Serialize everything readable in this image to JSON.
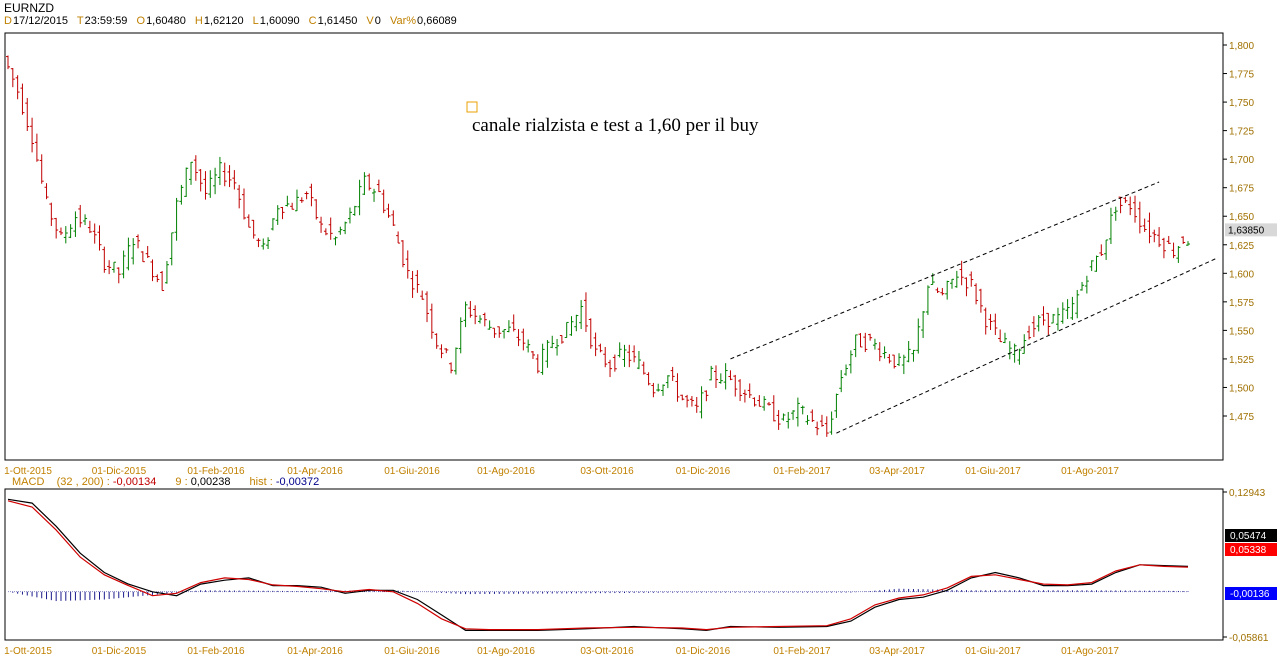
{
  "header": {
    "symbol": "EURNZD",
    "fields": [
      {
        "key": "D",
        "value": "17/12/2015"
      },
      {
        "key": "T",
        "value": "23:59:59"
      },
      {
        "key": "O",
        "value": "1,60480"
      },
      {
        "key": "H",
        "value": "1,62120"
      },
      {
        "key": "L",
        "value": "1,60090"
      },
      {
        "key": "C",
        "value": "1,61450"
      },
      {
        "key": "V",
        "value": "0"
      },
      {
        "key": "Var%",
        "value": "0,66089"
      }
    ]
  },
  "annotation": {
    "text": "canale rialzista e test a 1,60 per il buy",
    "marker_color": "#e8a000"
  },
  "macd_header": {
    "label": "MACD",
    "params": "(32 , 200) :",
    "macd_value": "-0,00134",
    "signal_label": "9 :",
    "signal_value": "0,00238",
    "hist_label": "hist :",
    "hist_value": "-0,00372"
  },
  "colors": {
    "up": "#008000",
    "down": "#c00000",
    "macd_line": "#000000",
    "signal_line": "#d00000",
    "histogram": "#1a1a8c",
    "axis_text": "#a07000",
    "date_text": "#c08000"
  },
  "chart_data": [
    {
      "type": "candlestick",
      "title": "EURNZD",
      "ylim": [
        1.45,
        1.81
      ],
      "yticks": [
        "1,800",
        "1,775",
        "1,750",
        "1,725",
        "1,700",
        "1,675",
        "1,650",
        "1,625",
        "1,600",
        "1,575",
        "1,550",
        "1,525",
        "1,500",
        "1,475"
      ],
      "x_labels": [
        "1-Ott-2015",
        "01-Dic-2015",
        "01-Feb-2016",
        "01-Apr-2016",
        "01-Giu-2016",
        "01-Ago-2016",
        "03-Ott-2016",
        "01-Dic-2016",
        "01-Feb-2017",
        "03-Apr-2017",
        "01-Giu-2017",
        "01-Ago-2017"
      ],
      "last_price_label": "1,63850",
      "last_price": 1.6385,
      "price_path": [
        [
          0,
          1.79
        ],
        [
          3,
          1.76
        ],
        [
          6,
          1.72
        ],
        [
          9,
          1.66
        ],
        [
          12,
          1.63
        ],
        [
          15,
          1.65
        ],
        [
          18,
          1.64
        ],
        [
          21,
          1.61
        ],
        [
          24,
          1.6
        ],
        [
          27,
          1.63
        ],
        [
          30,
          1.61
        ],
        [
          33,
          1.59
        ],
        [
          36,
          1.66
        ],
        [
          39,
          1.7
        ],
        [
          42,
          1.67
        ],
        [
          45,
          1.69
        ],
        [
          48,
          1.68
        ],
        [
          51,
          1.64
        ],
        [
          54,
          1.62
        ],
        [
          57,
          1.66
        ],
        [
          60,
          1.66
        ],
        [
          63,
          1.67
        ],
        [
          66,
          1.64
        ],
        [
          69,
          1.63
        ],
        [
          72,
          1.65
        ],
        [
          75,
          1.68
        ],
        [
          78,
          1.67
        ],
        [
          81,
          1.64
        ],
        [
          84,
          1.6
        ],
        [
          87,
          1.58
        ],
        [
          90,
          1.54
        ],
        [
          93,
          1.52
        ],
        [
          96,
          1.57
        ],
        [
          99,
          1.56
        ],
        [
          102,
          1.55
        ],
        [
          105,
          1.55
        ],
        [
          108,
          1.54
        ],
        [
          111,
          1.52
        ],
        [
          114,
          1.54
        ],
        [
          117,
          1.55
        ],
        [
          120,
          1.57
        ],
        [
          123,
          1.53
        ],
        [
          126,
          1.52
        ],
        [
          129,
          1.53
        ],
        [
          132,
          1.52
        ],
        [
          135,
          1.5
        ],
        [
          138,
          1.51
        ],
        [
          141,
          1.49
        ],
        [
          144,
          1.48
        ],
        [
          147,
          1.51
        ],
        [
          150,
          1.51
        ],
        [
          153,
          1.5
        ],
        [
          156,
          1.49
        ],
        [
          159,
          1.48
        ],
        [
          162,
          1.47
        ],
        [
          165,
          1.48
        ],
        [
          168,
          1.47
        ],
        [
          171,
          1.46
        ],
        [
          174,
          1.51
        ],
        [
          177,
          1.54
        ],
        [
          180,
          1.54
        ],
        [
          183,
          1.53
        ],
        [
          186,
          1.52
        ],
        [
          189,
          1.53
        ],
        [
          192,
          1.59
        ],
        [
          195,
          1.58
        ],
        [
          198,
          1.6
        ],
        [
          201,
          1.59
        ],
        [
          204,
          1.56
        ],
        [
          207,
          1.54
        ],
        [
          210,
          1.53
        ],
        [
          213,
          1.55
        ],
        [
          216,
          1.56
        ],
        [
          219,
          1.56
        ],
        [
          222,
          1.57
        ],
        [
          225,
          1.6
        ],
        [
          228,
          1.62
        ],
        [
          231,
          1.66
        ],
        [
          234,
          1.66
        ],
        [
          237,
          1.64
        ],
        [
          240,
          1.63
        ],
        [
          243,
          1.62
        ],
        [
          245,
          1.63
        ]
      ],
      "channel": {
        "upper": [
          {
            "x": 150,
            "y": 1.525
          },
          {
            "x": 239,
            "y": 1.68
          }
        ],
        "lower": [
          {
            "x": 172,
            "y": 1.46
          },
          {
            "x": 246,
            "y": 1.605
          }
        ]
      }
    },
    {
      "type": "line",
      "title": "MACD",
      "ylim": [
        -0.05861,
        0.12943
      ],
      "yticks": [
        "0,12943",
        "-0,05861"
      ],
      "x_labels": [
        "1-Ott-2015",
        "01-Dic-2015",
        "01-Feb-2016",
        "01-Apr-2016",
        "01-Giu-2016",
        "01-Ago-2016",
        "03-Ott-2016",
        "01-Dic-2016",
        "01-Feb-2017",
        "03-Apr-2017",
        "01-Giu-2017",
        "01-Ago-2017"
      ],
      "series": [
        {
          "name": "MACD",
          "values": [
            [
              0,
              0.12
            ],
            [
              5,
              0.115
            ],
            [
              10,
              0.085
            ],
            [
              15,
              0.05
            ],
            [
              20,
              0.025
            ],
            [
              25,
              0.01
            ],
            [
              30,
              0.0
            ],
            [
              35,
              -0.005
            ],
            [
              40,
              0.01
            ],
            [
              45,
              0.015
            ],
            [
              50,
              0.018
            ],
            [
              55,
              0.008
            ],
            [
              60,
              0.008
            ],
            [
              65,
              0.006
            ],
            [
              70,
              -0.002
            ],
            [
              75,
              0.002
            ],
            [
              80,
              0.002
            ],
            [
              85,
              -0.01
            ],
            [
              90,
              -0.03
            ],
            [
              95,
              -0.05
            ],
            [
              100,
              -0.05
            ],
            [
              110,
              -0.05
            ],
            [
              120,
              -0.048
            ],
            [
              130,
              -0.045
            ],
            [
              140,
              -0.048
            ],
            [
              145,
              -0.05
            ],
            [
              150,
              -0.045
            ],
            [
              160,
              -0.046
            ],
            [
              170,
              -0.045
            ],
            [
              175,
              -0.038
            ],
            [
              180,
              -0.02
            ],
            [
              185,
              -0.01
            ],
            [
              190,
              -0.007
            ],
            [
              195,
              0.002
            ],
            [
              200,
              0.018
            ],
            [
              205,
              0.025
            ],
            [
              210,
              0.018
            ],
            [
              215,
              0.008
            ],
            [
              220,
              0.008
            ],
            [
              225,
              0.01
            ],
            [
              230,
              0.025
            ],
            [
              235,
              0.035
            ],
            [
              240,
              0.034
            ],
            [
              245,
              0.033
            ]
          ]
        },
        {
          "name": "9",
          "values": [
            [
              0,
              0.118
            ],
            [
              5,
              0.11
            ],
            [
              10,
              0.08
            ],
            [
              15,
              0.045
            ],
            [
              20,
              0.022
            ],
            [
              25,
              0.008
            ],
            [
              30,
              -0.005
            ],
            [
              35,
              -0.002
            ],
            [
              40,
              0.012
            ],
            [
              45,
              0.018
            ],
            [
              50,
              0.016
            ],
            [
              55,
              0.009
            ],
            [
              60,
              0.007
            ],
            [
              65,
              0.004
            ],
            [
              70,
              0.0
            ],
            [
              75,
              0.003
            ],
            [
              80,
              0.0
            ],
            [
              85,
              -0.015
            ],
            [
              90,
              -0.035
            ],
            [
              95,
              -0.048
            ],
            [
              100,
              -0.049
            ],
            [
              110,
              -0.049
            ],
            [
              120,
              -0.047
            ],
            [
              130,
              -0.046
            ],
            [
              140,
              -0.047
            ],
            [
              145,
              -0.049
            ],
            [
              150,
              -0.046
            ],
            [
              160,
              -0.045
            ],
            [
              170,
              -0.044
            ],
            [
              175,
              -0.035
            ],
            [
              180,
              -0.017
            ],
            [
              185,
              -0.008
            ],
            [
              190,
              -0.004
            ],
            [
              195,
              0.005
            ],
            [
              200,
              0.02
            ],
            [
              205,
              0.022
            ],
            [
              210,
              0.016
            ],
            [
              215,
              0.01
            ],
            [
              220,
              0.009
            ],
            [
              225,
              0.012
            ],
            [
              230,
              0.027
            ],
            [
              235,
              0.035
            ],
            [
              240,
              0.033
            ],
            [
              245,
              0.032
            ]
          ]
        }
      ],
      "value_labels": [
        "0,05474",
        "0,05338",
        "-0,00136"
      ],
      "histogram": [
        [
          0,
          0.0
        ],
        [
          10,
          -0.012
        ],
        [
          20,
          -0.01
        ],
        [
          30,
          -0.004
        ],
        [
          40,
          0.002
        ],
        [
          60,
          0.001
        ],
        [
          80,
          0.002
        ],
        [
          95,
          -0.003
        ],
        [
          140,
          -0.001
        ],
        [
          175,
          -0.001
        ],
        [
          185,
          0.004
        ],
        [
          200,
          0.002
        ],
        [
          210,
          0.002
        ],
        [
          225,
          0.002
        ],
        [
          245,
          0.001
        ]
      ]
    }
  ]
}
